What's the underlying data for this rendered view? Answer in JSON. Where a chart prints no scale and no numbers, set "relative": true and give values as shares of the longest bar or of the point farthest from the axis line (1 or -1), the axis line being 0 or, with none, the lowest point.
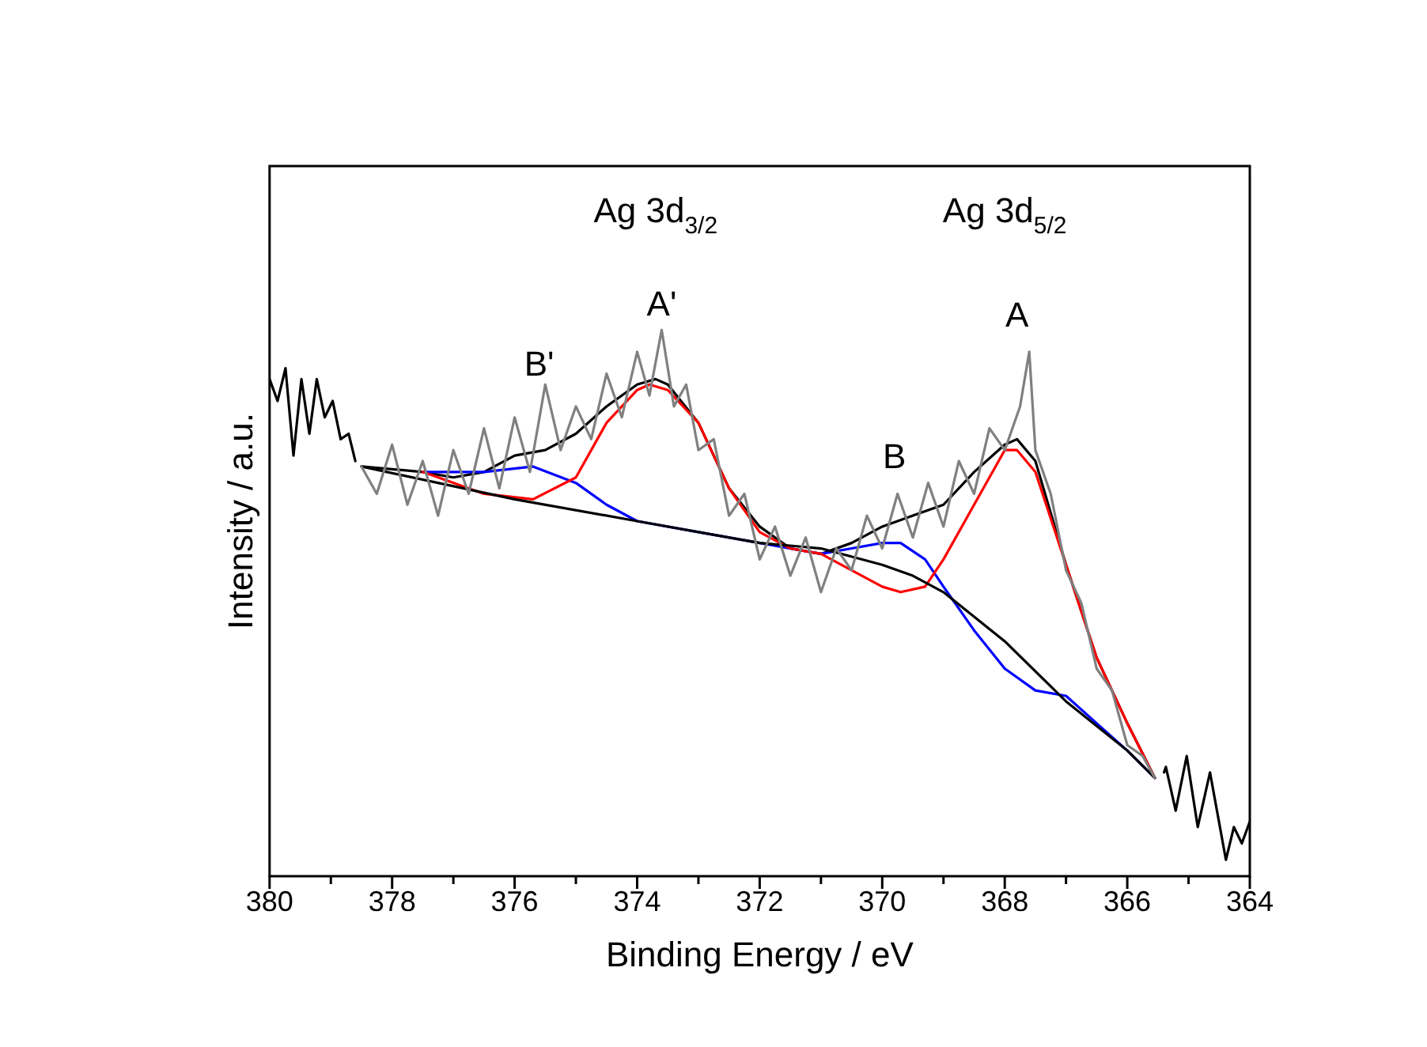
{
  "chart_data": {
    "type": "line",
    "relative": true,
    "xlabel": "Binding Energy / eV",
    "ylabel": "Intensity / a.u.",
    "xlim": [
      380,
      364
    ],
    "xticks": [
      380,
      {
        "value": 379,
        "label": null
      },
      378,
      {
        "value": 377,
        "label": null
      },
      376,
      {
        "value": 375,
        "label": null
      },
      374,
      {
        "value": 373,
        "label": null
      },
      372,
      {
        "value": 371,
        "label": null
      },
      370,
      {
        "value": 369,
        "label": null
      },
      368,
      {
        "value": 367,
        "label": null
      },
      366,
      {
        "value": 365,
        "label": null
      },
      364
    ],
    "marker": "none",
    "line_style": "solid",
    "series": [
      {
        "color": "#808080",
        "x": [
          378.5,
          378.25,
          378.0,
          377.75,
          377.5,
          377.25,
          377.0,
          376.75,
          376.5,
          376.25,
          376.0,
          375.75,
          375.5,
          375.25,
          375.0,
          374.75,
          374.5,
          374.25,
          374.0,
          373.8,
          373.6,
          373.4,
          373.2,
          373.0,
          372.75,
          372.5,
          372.25,
          372.0,
          371.75,
          371.5,
          371.25,
          371.0,
          370.75,
          370.5,
          370.25,
          370.0,
          369.75,
          369.5,
          369.25,
          369.0,
          368.75,
          368.5,
          368.25,
          368.0,
          367.75,
          367.6,
          367.5,
          367.25,
          367.0,
          366.75,
          366.5,
          366.25,
          366.0,
          365.75,
          365.55
        ],
        "values": [
          0.75,
          0.7,
          0.79,
          0.68,
          0.76,
          0.66,
          0.78,
          0.7,
          0.82,
          0.71,
          0.84,
          0.74,
          0.9,
          0.78,
          0.86,
          0.8,
          0.92,
          0.84,
          0.96,
          0.88,
          1.0,
          0.86,
          0.9,
          0.78,
          0.8,
          0.66,
          0.7,
          0.58,
          0.64,
          0.55,
          0.62,
          0.52,
          0.6,
          0.56,
          0.66,
          0.6,
          0.7,
          0.62,
          0.72,
          0.64,
          0.76,
          0.7,
          0.82,
          0.78,
          0.86,
          0.96,
          0.78,
          0.7,
          0.56,
          0.5,
          0.38,
          0.34,
          0.24,
          0.22,
          0.18
        ]
      },
      {
        "color": "#000000",
        "x": [
          378.5,
          376,
          374,
          372,
          371,
          370,
          369.5,
          369,
          368,
          367,
          366,
          365.55
        ],
        "values": [
          0.75,
          0.69,
          0.65,
          0.61,
          0.6,
          0.57,
          0.55,
          0.52,
          0.43,
          0.32,
          0.23,
          0.18
        ]
      },
      {
        "color": "#ff0000",
        "x": [
          377.5,
          376.5,
          375.7,
          375,
          374.5,
          374,
          373.8,
          373.5,
          373,
          372.5,
          372,
          371.5,
          371,
          370.5,
          370,
          369.7,
          369.3,
          369,
          368.5,
          368,
          367.8,
          367.5,
          367,
          366.5,
          366,
          365.55
        ],
        "values": [
          0.74,
          0.7,
          0.69,
          0.73,
          0.83,
          0.89,
          0.9,
          0.89,
          0.83,
          0.71,
          0.63,
          0.6,
          0.59,
          0.56,
          0.53,
          0.52,
          0.53,
          0.58,
          0.68,
          0.78,
          0.78,
          0.74,
          0.57,
          0.4,
          0.28,
          0.18
        ]
      },
      {
        "color": "#0000ff",
        "x": [
          377.5,
          376.5,
          375.7,
          375,
          374.5,
          374,
          373,
          372,
          371,
          370.5,
          370,
          369.7,
          369.3,
          369,
          368.5,
          368,
          367.5,
          367,
          366.5,
          366,
          365.55
        ],
        "values": [
          0.74,
          0.74,
          0.75,
          0.72,
          0.68,
          0.65,
          0.63,
          0.61,
          0.59,
          0.6,
          0.61,
          0.61,
          0.58,
          0.53,
          0.45,
          0.38,
          0.34,
          0.33,
          0.28,
          0.23,
          0.18
        ]
      },
      {
        "color": "#000000",
        "x": [
          378.5,
          377.5,
          377,
          376.5,
          376,
          375.5,
          375,
          374.5,
          374,
          373.7,
          373.5,
          373,
          372.5,
          372,
          371.5,
          371,
          370.5,
          370,
          369.5,
          369,
          368.5,
          368,
          367.8,
          367.5,
          367,
          366.5,
          366,
          365.55
        ],
        "values": [
          0.75,
          0.74,
          0.73,
          0.74,
          0.77,
          0.78,
          0.81,
          0.86,
          0.9,
          0.91,
          0.9,
          0.83,
          0.71,
          0.64,
          0.6,
          0.59,
          0.61,
          0.64,
          0.66,
          0.68,
          0.74,
          0.79,
          0.8,
          0.76,
          0.57,
          0.4,
          0.28,
          0.18
        ]
      },
      {
        "color": "#000000",
        "x": [
          380,
          379.87,
          379.74,
          379.61,
          379.48,
          379.35,
          379.23,
          379.1,
          378.97,
          378.84,
          378.71,
          378.6,
          371,
          365.4,
          365.37,
          365.21,
          365.03,
          364.85,
          364.65,
          364.39,
          364.26,
          364.13,
          364.0
        ],
        "values": [
          0.91,
          0.87,
          0.93,
          0.77,
          0.91,
          0.81,
          0.91,
          0.84,
          0.87,
          0.8,
          0.81,
          0.76,
          null,
          0.19,
          0.2,
          0.12,
          0.22,
          0.09,
          0.19,
          0.03,
          0.09,
          0.06,
          0.1
        ]
      }
    ],
    "annotations": [
      "Ag 3d$_{3/2}$",
      "Ag 3d$_{5/2}$",
      "B'",
      "A'",
      "B",
      "A"
    ]
  }
}
